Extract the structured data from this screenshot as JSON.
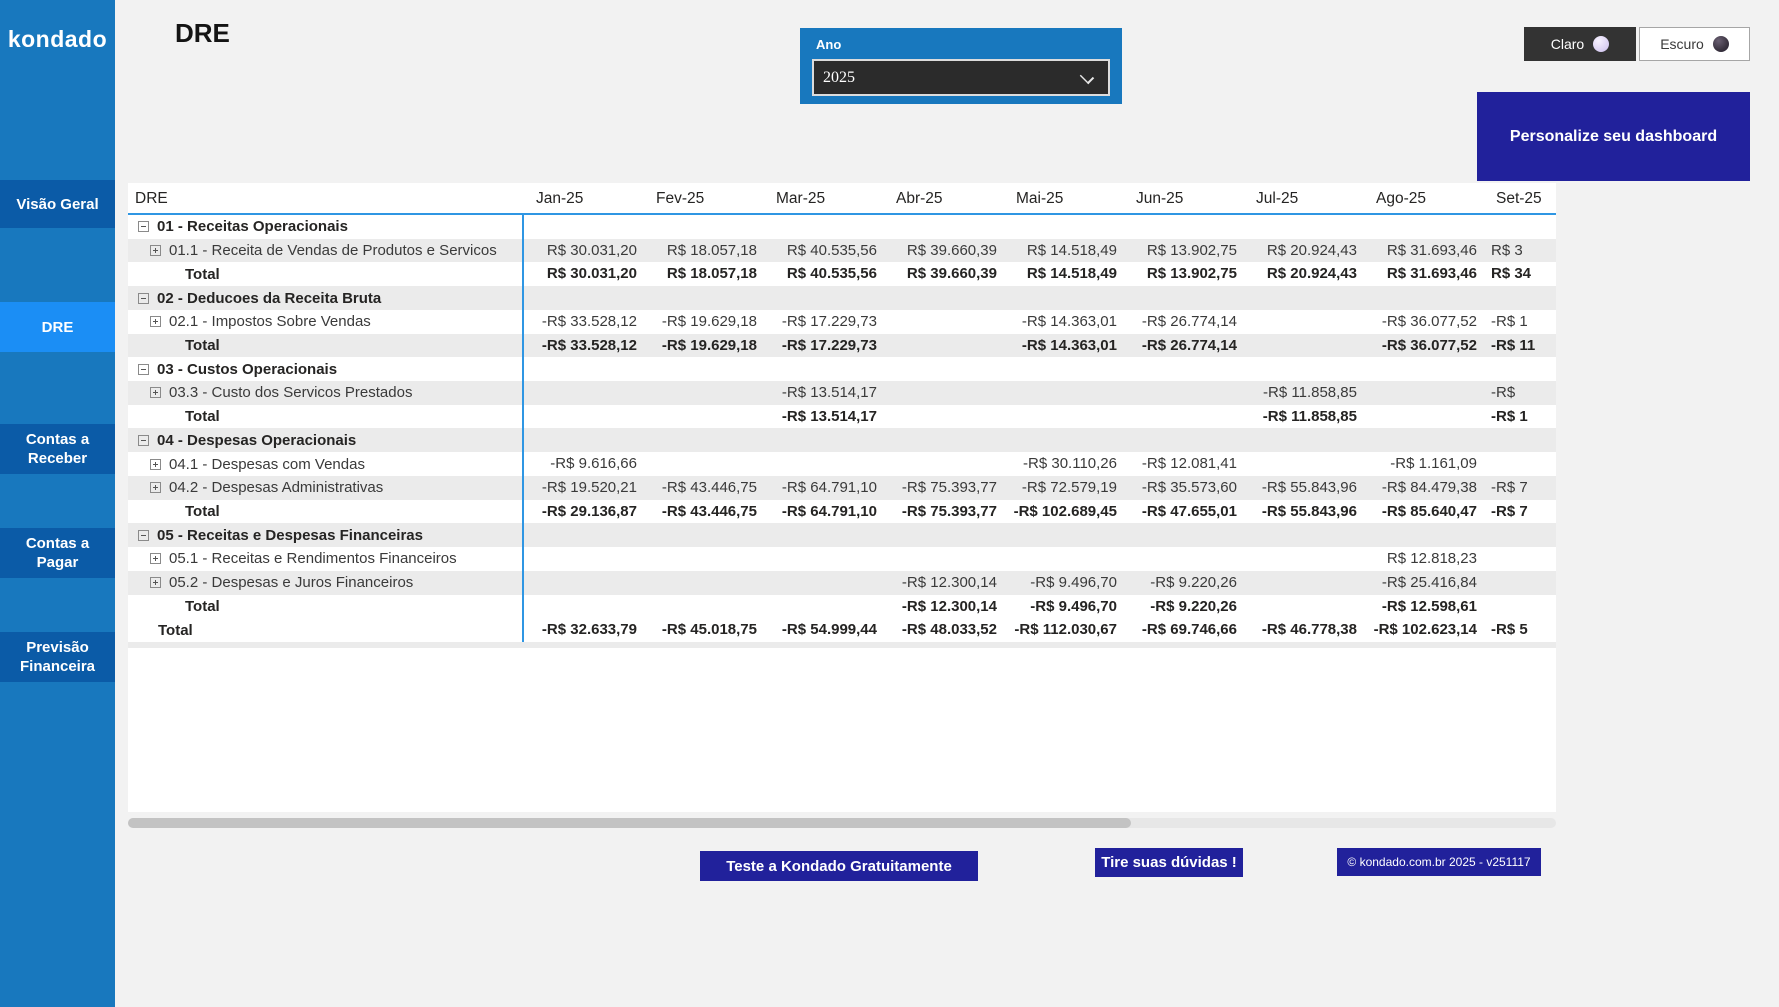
{
  "app": {
    "logo": "kondado",
    "page_title": "DRE"
  },
  "sidebar": {
    "items": [
      {
        "label": "Visão Geral",
        "active": false
      },
      {
        "label": "DRE",
        "active": true
      },
      {
        "label": "Contas a Receber",
        "active": false
      },
      {
        "label": "Contas a Pagar",
        "active": false
      },
      {
        "label": "Previsão Financeira",
        "active": false
      }
    ]
  },
  "slicer": {
    "label": "Ano",
    "value": "2025"
  },
  "theme_toggle": {
    "light_label": "Claro",
    "dark_label": "Escuro"
  },
  "personalize_label": "Personalize seu dashboard",
  "table": {
    "first_col_header": "DRE",
    "month_headers": [
      "Jan-25",
      "Fev-25",
      "Mar-25",
      "Abr-25",
      "Mai-25",
      "Jun-25",
      "Jul-25",
      "Ago-25",
      "Set-25"
    ],
    "rows": [
      {
        "type": "section",
        "label": "01 - Receitas Operacionais",
        "values": [
          "",
          "",
          "",
          "",
          "",
          "",
          "",
          "",
          ""
        ]
      },
      {
        "type": "item",
        "label": "01.1 - Receita de Vendas de Produtos e Servicos",
        "values": [
          "R$ 30.031,20",
          "R$ 18.057,18",
          "R$ 40.535,56",
          "R$ 39.660,39",
          "R$ 14.518,49",
          "R$ 13.902,75",
          "R$ 20.924,43",
          "R$ 31.693,46",
          "R$ 3"
        ]
      },
      {
        "type": "total",
        "label": "Total",
        "values": [
          "R$ 30.031,20",
          "R$ 18.057,18",
          "R$ 40.535,56",
          "R$ 39.660,39",
          "R$ 14.518,49",
          "R$ 13.902,75",
          "R$ 20.924,43",
          "R$ 31.693,46",
          "R$ 34"
        ]
      },
      {
        "type": "section",
        "label": "02 - Deducoes da Receita Bruta",
        "values": [
          "",
          "",
          "",
          "",
          "",
          "",
          "",
          "",
          ""
        ]
      },
      {
        "type": "item",
        "label": "02.1 - Impostos Sobre Vendas",
        "values": [
          "-R$ 33.528,12",
          "-R$ 19.629,18",
          "-R$ 17.229,73",
          "",
          "-R$ 14.363,01",
          "-R$ 26.774,14",
          "",
          "-R$ 36.077,52",
          "-R$ 1"
        ]
      },
      {
        "type": "total",
        "label": "Total",
        "values": [
          "-R$ 33.528,12",
          "-R$ 19.629,18",
          "-R$ 17.229,73",
          "",
          "-R$ 14.363,01",
          "-R$ 26.774,14",
          "",
          "-R$ 36.077,52",
          "-R$ 11"
        ]
      },
      {
        "type": "section",
        "label": "03 - Custos Operacionais",
        "values": [
          "",
          "",
          "",
          "",
          "",
          "",
          "",
          "",
          ""
        ]
      },
      {
        "type": "item",
        "label": "03.3 - Custo dos Servicos Prestados",
        "values": [
          "",
          "",
          "-R$ 13.514,17",
          "",
          "",
          "",
          "-R$ 11.858,85",
          "",
          "-R$"
        ]
      },
      {
        "type": "total",
        "label": "Total",
        "values": [
          "",
          "",
          "-R$ 13.514,17",
          "",
          "",
          "",
          "-R$ 11.858,85",
          "",
          "-R$ 1"
        ]
      },
      {
        "type": "section",
        "label": "04 - Despesas Operacionais",
        "values": [
          "",
          "",
          "",
          "",
          "",
          "",
          "",
          "",
          ""
        ]
      },
      {
        "type": "item",
        "label": "04.1 - Despesas com Vendas",
        "values": [
          "-R$ 9.616,66",
          "",
          "",
          "",
          "-R$ 30.110,26",
          "-R$ 12.081,41",
          "",
          "-R$ 1.161,09",
          ""
        ]
      },
      {
        "type": "item",
        "label": "04.2 - Despesas Administrativas",
        "values": [
          "-R$ 19.520,21",
          "-R$ 43.446,75",
          "-R$ 64.791,10",
          "-R$ 75.393,77",
          "-R$ 72.579,19",
          "-R$ 35.573,60",
          "-R$ 55.843,96",
          "-R$ 84.479,38",
          "-R$ 7"
        ]
      },
      {
        "type": "total",
        "label": "Total",
        "values": [
          "-R$ 29.136,87",
          "-R$ 43.446,75",
          "-R$ 64.791,10",
          "-R$ 75.393,77",
          "-R$ 102.689,45",
          "-R$ 47.655,01",
          "-R$ 55.843,96",
          "-R$ 85.640,47",
          "-R$ 7"
        ]
      },
      {
        "type": "section",
        "label": "05 - Receitas e Despesas Financeiras",
        "values": [
          "",
          "",
          "",
          "",
          "",
          "",
          "",
          "",
          ""
        ]
      },
      {
        "type": "item",
        "label": "05.1 - Receitas e Rendimentos Financeiros",
        "values": [
          "",
          "",
          "",
          "",
          "",
          "",
          "",
          "R$ 12.818,23",
          ""
        ]
      },
      {
        "type": "item",
        "label": "05.2 - Despesas e Juros Financeiros",
        "values": [
          "",
          "",
          "",
          "-R$ 12.300,14",
          "-R$ 9.496,70",
          "-R$ 9.220,26",
          "",
          "-R$ 25.416,84",
          ""
        ]
      },
      {
        "type": "total",
        "label": "Total",
        "values": [
          "",
          "",
          "",
          "-R$ 12.300,14",
          "-R$ 9.496,70",
          "-R$ 9.220,26",
          "",
          "-R$ 12.598,61",
          ""
        ]
      },
      {
        "type": "grand",
        "label": "Total",
        "values": [
          "-R$ 32.633,79",
          "-R$ 45.018,75",
          "-R$ 54.999,44",
          "-R$ 48.033,52",
          "-R$ 112.030,67",
          "-R$ 69.746,66",
          "-R$ 46.778,38",
          "-R$ 102.623,14",
          "-R$ 5"
        ]
      }
    ]
  },
  "footer": {
    "cta_label": "Teste a Kondado Gratuitamente",
    "help_label": "Tire suas dúvidas !",
    "copyright_label": "© kondado.com.br 2025 - v251117"
  },
  "colors": {
    "sidebar": "#1878be",
    "sidebar_item": "#0b5ba7",
    "sidebar_active": "#1b8ef5",
    "navy_button": "#21219b",
    "dark_button": "#333333",
    "table_accent_line": "#2f96e3",
    "row_alt": "#ebebeb",
    "background": "#f2f2f2"
  }
}
